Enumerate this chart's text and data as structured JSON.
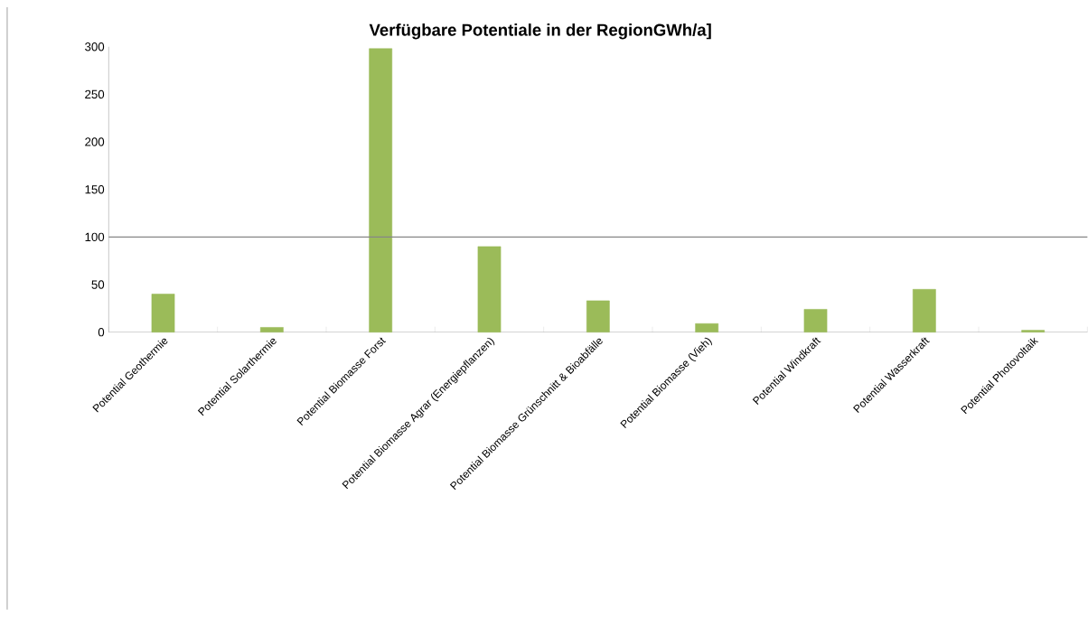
{
  "chart_data": {
    "type": "bar",
    "title": "Verfügbare  Potentiale in der RegionGWh/a]",
    "categories": [
      "Potential Geothermie",
      "Potential Solarthermie",
      "Potential Biomasse Forst",
      "Potential Biomasse Agrar (Energiepflanzen)",
      "Potential Biomasse Grünschnitt & Bioabfälle",
      "Potential Biomasse (Vieh)",
      "Potential Windkraft",
      "Potential Wasserkraft",
      "Potential  Photovoltaik"
    ],
    "values": [
      40,
      5,
      298,
      90,
      33,
      9,
      24,
      45,
      2
    ],
    "color": "#9bbb59",
    "ylim": [
      0,
      300
    ],
    "yticks": [
      0,
      50,
      100,
      150,
      200,
      250,
      300
    ],
    "ref_lines": [
      {
        "axis": "y",
        "value": 100,
        "color": "#868686"
      }
    ]
  }
}
